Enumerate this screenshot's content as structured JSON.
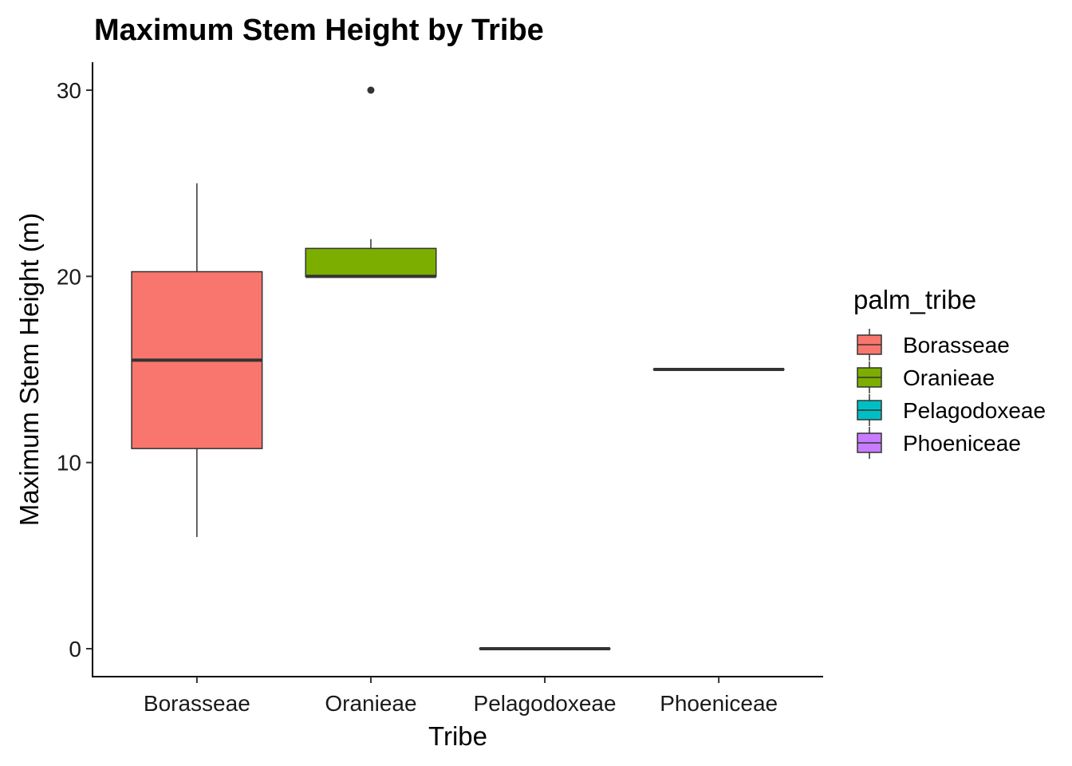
{
  "chart_data": {
    "type": "boxplot",
    "title": "Maximum Stem Height by Tribe",
    "xlabel": "Tribe",
    "ylabel": "Maximum Stem Height (m)",
    "ylim": [
      -1.5,
      31.5
    ],
    "yticks": [
      0,
      10,
      20,
      30
    ],
    "categories": [
      "Borasseae",
      "Oranieae",
      "Pelagodoxeae",
      "Phoeniceae"
    ],
    "boxes": [
      {
        "name": "Borasseae",
        "min": 6,
        "q1": 10.75,
        "median": 15.5,
        "q3": 20.25,
        "max": 25,
        "outliers": []
      },
      {
        "name": "Oranieae",
        "min": 20,
        "q1": 20,
        "median": 20,
        "q3": 21.5,
        "max": 22,
        "outliers": [
          30
        ]
      },
      {
        "name": "Pelagodoxeae",
        "min": 0,
        "q1": 0,
        "median": 0,
        "q3": 0,
        "max": 0,
        "outliers": []
      },
      {
        "name": "Phoeniceae",
        "min": 15,
        "q1": 15,
        "median": 15,
        "q3": 15,
        "max": 15,
        "outliers": []
      }
    ],
    "colors": [
      "#F8766D",
      "#7CAE00",
      "#00BFC4",
      "#C77CFF"
    ],
    "grid": false,
    "legend": {
      "title": "palm_tribe",
      "position": "right",
      "entries": [
        "Borasseae",
        "Oranieae",
        "Pelagodoxeae",
        "Phoeniceae"
      ]
    }
  }
}
